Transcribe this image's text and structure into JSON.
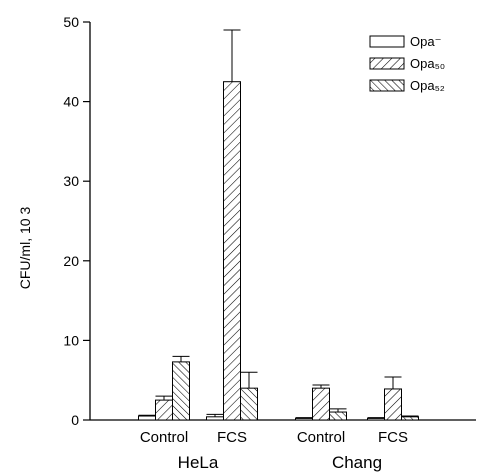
{
  "chart_data": {
    "type": "bar",
    "ylabel": "CFU/ml, 10 3",
    "ylim": [
      0,
      50
    ],
    "yticks": [
      0,
      10,
      20,
      30,
      40,
      50
    ],
    "categories": [
      "Control",
      "FCS",
      "Control",
      "FCS"
    ],
    "groups": [
      {
        "label": "HeLa",
        "categories": [
          0,
          1
        ]
      },
      {
        "label": "Chang",
        "categories": [
          2,
          3
        ]
      }
    ],
    "series": [
      {
        "name": "Opa⁻",
        "pattern": "none",
        "values": [
          0.5,
          0.4,
          0.2,
          0.2
        ],
        "errors": [
          0.1,
          0.3,
          0.1,
          0.1
        ]
      },
      {
        "name": "Opa₅₀",
        "pattern": "hatch-right",
        "values": [
          2.5,
          42.5,
          4.0,
          3.9
        ],
        "errors": [
          0.5,
          6.5,
          0.4,
          1.5
        ]
      },
      {
        "name": "Opa₅₂",
        "pattern": "hatch-left",
        "values": [
          7.3,
          4.0,
          1.0,
          0.4
        ],
        "errors": [
          0.7,
          2.0,
          0.4,
          0.1
        ]
      }
    ],
    "legend_position": "top-right",
    "grid": false
  }
}
